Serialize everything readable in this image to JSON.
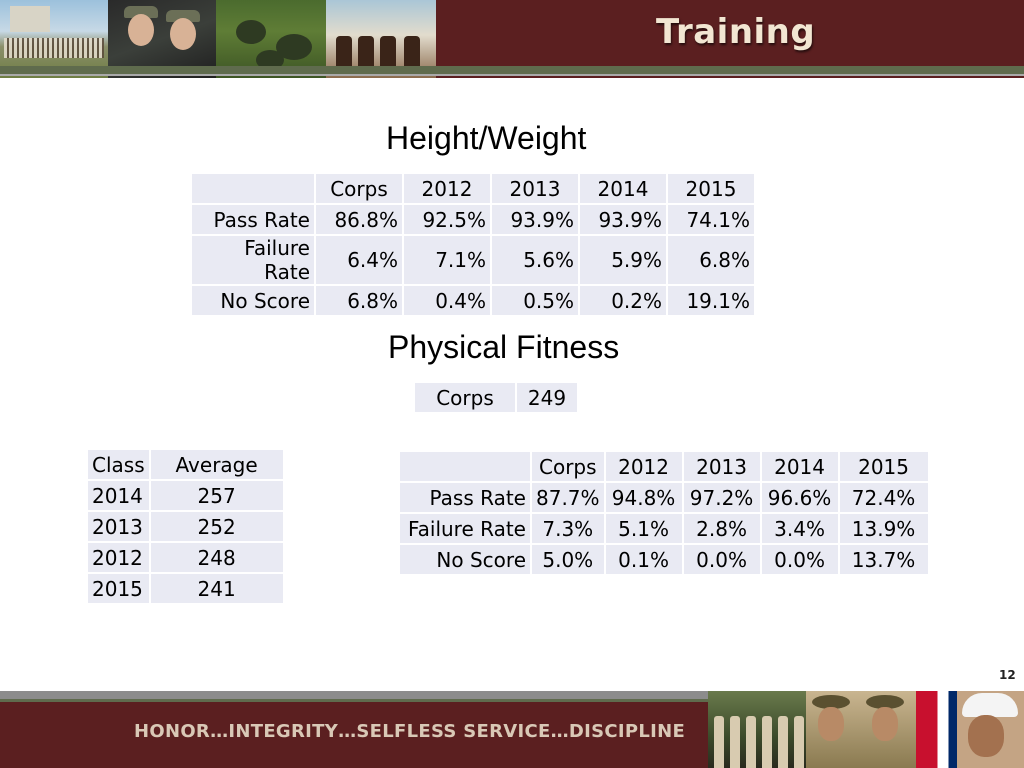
{
  "header": {
    "title": "Training"
  },
  "height_weight": {
    "title": "Height/Weight",
    "columns": [
      "",
      "Corps",
      "2012",
      "2013",
      "2014",
      "2015"
    ],
    "rows": [
      {
        "label": "Pass Rate",
        "values": [
          "86.8%",
          "92.5%",
          "93.9%",
          "93.9%",
          "74.1%"
        ]
      },
      {
        "label": "Failure Rate",
        "values": [
          "6.4%",
          "7.1%",
          "5.6%",
          "5.9%",
          "6.8%"
        ]
      },
      {
        "label": "No Score",
        "values": [
          "6.8%",
          "0.4%",
          "0.5%",
          "0.2%",
          "19.1%"
        ]
      }
    ]
  },
  "physical_fitness": {
    "title": "Physical Fitness",
    "corps_average": {
      "label": "Corps",
      "value": "249"
    },
    "class_table": {
      "columns": [
        "Class",
        "Average"
      ],
      "rows": [
        [
          "2014",
          "257"
        ],
        [
          "2013",
          "252"
        ],
        [
          "2012",
          "248"
        ],
        [
          "2015",
          "241"
        ]
      ]
    },
    "rates_table": {
      "columns": [
        "",
        "Corps",
        "2012",
        "2013",
        "2014",
        "2015"
      ],
      "rows": [
        {
          "label": "Pass Rate",
          "values": [
            "87.7%",
            "94.8%",
            "97.2%",
            "96.6%",
            "72.4%"
          ]
        },
        {
          "label": "Failure Rate",
          "values": [
            "7.3%",
            "5.1%",
            "2.8%",
            "3.4%",
            "13.9%"
          ]
        },
        {
          "label": "No Score",
          "values": [
            "5.0%",
            "0.1%",
            "0.0%",
            "0.0%",
            "13.7%"
          ]
        }
      ]
    }
  },
  "slide_number": "12",
  "footer": {
    "motto": "HONOR…INTEGRITY…SELFLESS SERVICE…DISCIPLINE"
  },
  "colors": {
    "maroon": "#5b1f20",
    "cell_background": "#e9eaf3",
    "stripe_green": "#5f6b4d",
    "title_text": "#f2e6d2"
  }
}
